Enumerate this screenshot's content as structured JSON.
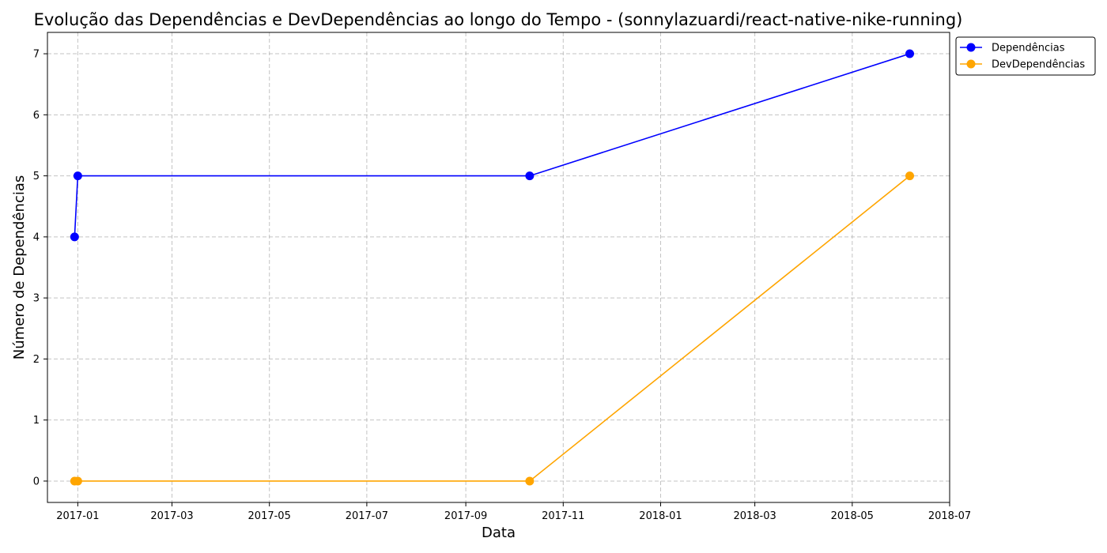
{
  "chart_data": {
    "type": "line",
    "title": "Evolução das Dependências e DevDependências ao longo do Tempo - (sonnylazuardi/react-native-nike-running)",
    "xlabel": "Data",
    "ylabel": "Número de Dependências",
    "x_ticks": [
      "2017-01",
      "2017-03",
      "2017-05",
      "2017-07",
      "2017-09",
      "2017-11",
      "2018-01",
      "2018-03",
      "2018-05",
      "2018-07"
    ],
    "y_ticks": [
      0,
      1,
      2,
      3,
      4,
      5,
      6,
      7
    ],
    "xlim": [
      "2016-12-13",
      "2018-07-01"
    ],
    "ylim": [
      -0.35,
      7.35
    ],
    "grid": true,
    "legend_position": "outside-top-right",
    "series": [
      {
        "name": "Dependências",
        "color": "#0000ff",
        "marker": "circle",
        "points": [
          {
            "x": "2016-12-30",
            "y": 4
          },
          {
            "x": "2017-01-01",
            "y": 5
          },
          {
            "x": "2017-10-11",
            "y": 5
          },
          {
            "x": "2018-06-06",
            "y": 7
          }
        ]
      },
      {
        "name": "DevDependências",
        "color": "#ffa500",
        "marker": "circle",
        "points": [
          {
            "x": "2016-12-30",
            "y": 0
          },
          {
            "x": "2017-01-01",
            "y": 0
          },
          {
            "x": "2017-10-11",
            "y": 0
          },
          {
            "x": "2018-06-06",
            "y": 5
          }
        ]
      }
    ]
  }
}
